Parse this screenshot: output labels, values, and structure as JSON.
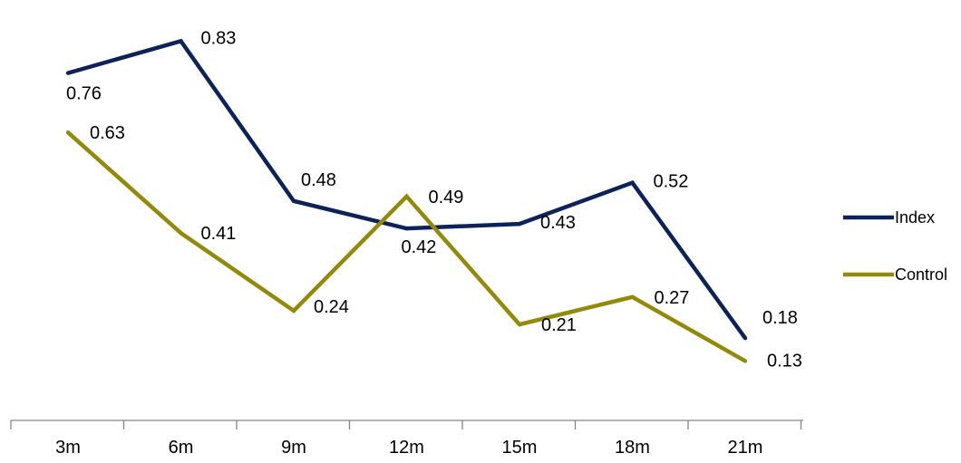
{
  "chart_data": {
    "type": "line",
    "title": "",
    "xlabel": "",
    "ylabel": "",
    "categories": [
      "3m",
      "6m",
      "9m",
      "12m",
      "15m",
      "18m",
      "21m"
    ],
    "series": [
      {
        "name": "Index",
        "values": [
          0.76,
          0.83,
          0.48,
          0.42,
          0.43,
          0.52,
          0.18
        ],
        "color": "#0d2259"
      },
      {
        "name": "Control",
        "values": [
          0.63,
          0.41,
          0.24,
          0.49,
          0.21,
          0.27,
          0.13
        ],
        "color": "#948a0a"
      }
    ],
    "ylim": [
      0,
      0.9
    ],
    "grid": false,
    "legend": "right"
  }
}
